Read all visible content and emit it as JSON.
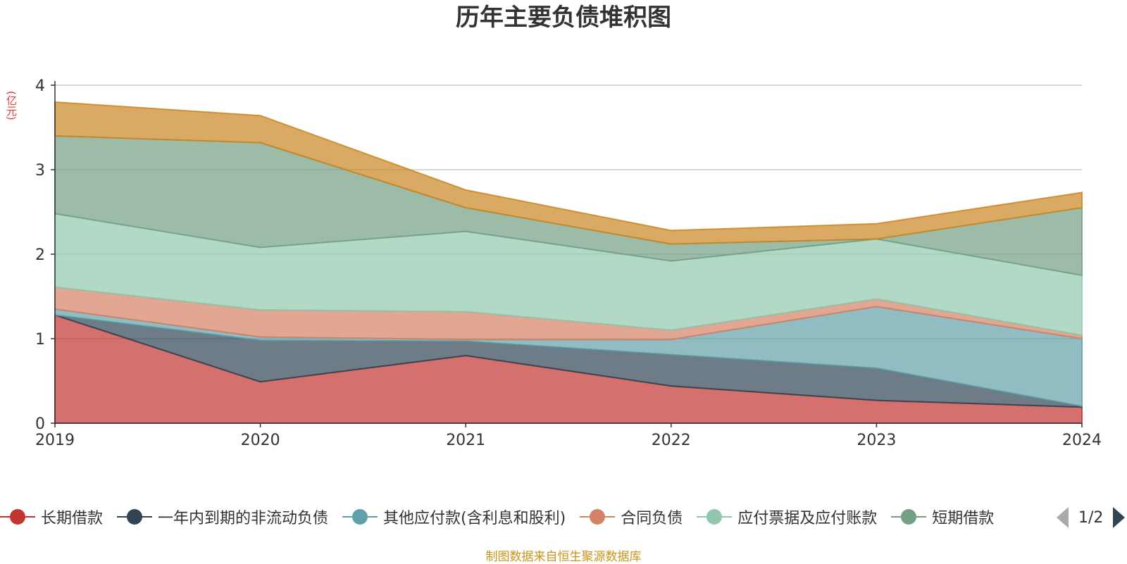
{
  "title": "历年主要负债堆积图",
  "y_unit": "(亿元)",
  "source_note": "制图数据来自恒生聚源数据库",
  "legend_page": "1/2",
  "chart_data": {
    "type": "area",
    "stacked": true,
    "title": "历年主要负债堆积图",
    "ylabel": "(亿元)",
    "xlabel": "",
    "x": [
      "2019",
      "2020",
      "2021",
      "2022",
      "2023",
      "2024"
    ],
    "ylim": [
      0,
      4
    ],
    "yticks": [
      0,
      1,
      2,
      3,
      4
    ],
    "grid": true,
    "legend_position": "bottom",
    "series": [
      {
        "name": "长期借款",
        "color": "#c23531",
        "values": [
          1.28,
          0.49,
          0.8,
          0.44,
          0.27,
          0.19
        ]
      },
      {
        "name": "一年内到期的非流动负债",
        "color": "#2f4554",
        "values": [
          0.0,
          0.49,
          0.17,
          0.37,
          0.38,
          0.01
        ]
      },
      {
        "name": "其他应付款(含利息和股利)",
        "color": "#61a0a8",
        "values": [
          0.07,
          0.04,
          0.02,
          0.18,
          0.73,
          0.8
        ]
      },
      {
        "name": "合同负债",
        "color": "#d48265",
        "values": [
          0.26,
          0.32,
          0.33,
          0.11,
          0.09,
          0.04
        ]
      },
      {
        "name": "应付票据及应付账款",
        "color": "#91c7ae",
        "values": [
          0.87,
          0.74,
          0.95,
          0.82,
          0.71,
          0.71
        ]
      },
      {
        "name": "短期借款",
        "color": "#749f83",
        "values": [
          0.92,
          1.24,
          0.28,
          0.2,
          0.0,
          0.8
        ]
      },
      {
        "name": "",
        "color": "#ca8622",
        "values": [
          0.4,
          0.32,
          0.21,
          0.16,
          0.18,
          0.18
        ]
      }
    ]
  }
}
